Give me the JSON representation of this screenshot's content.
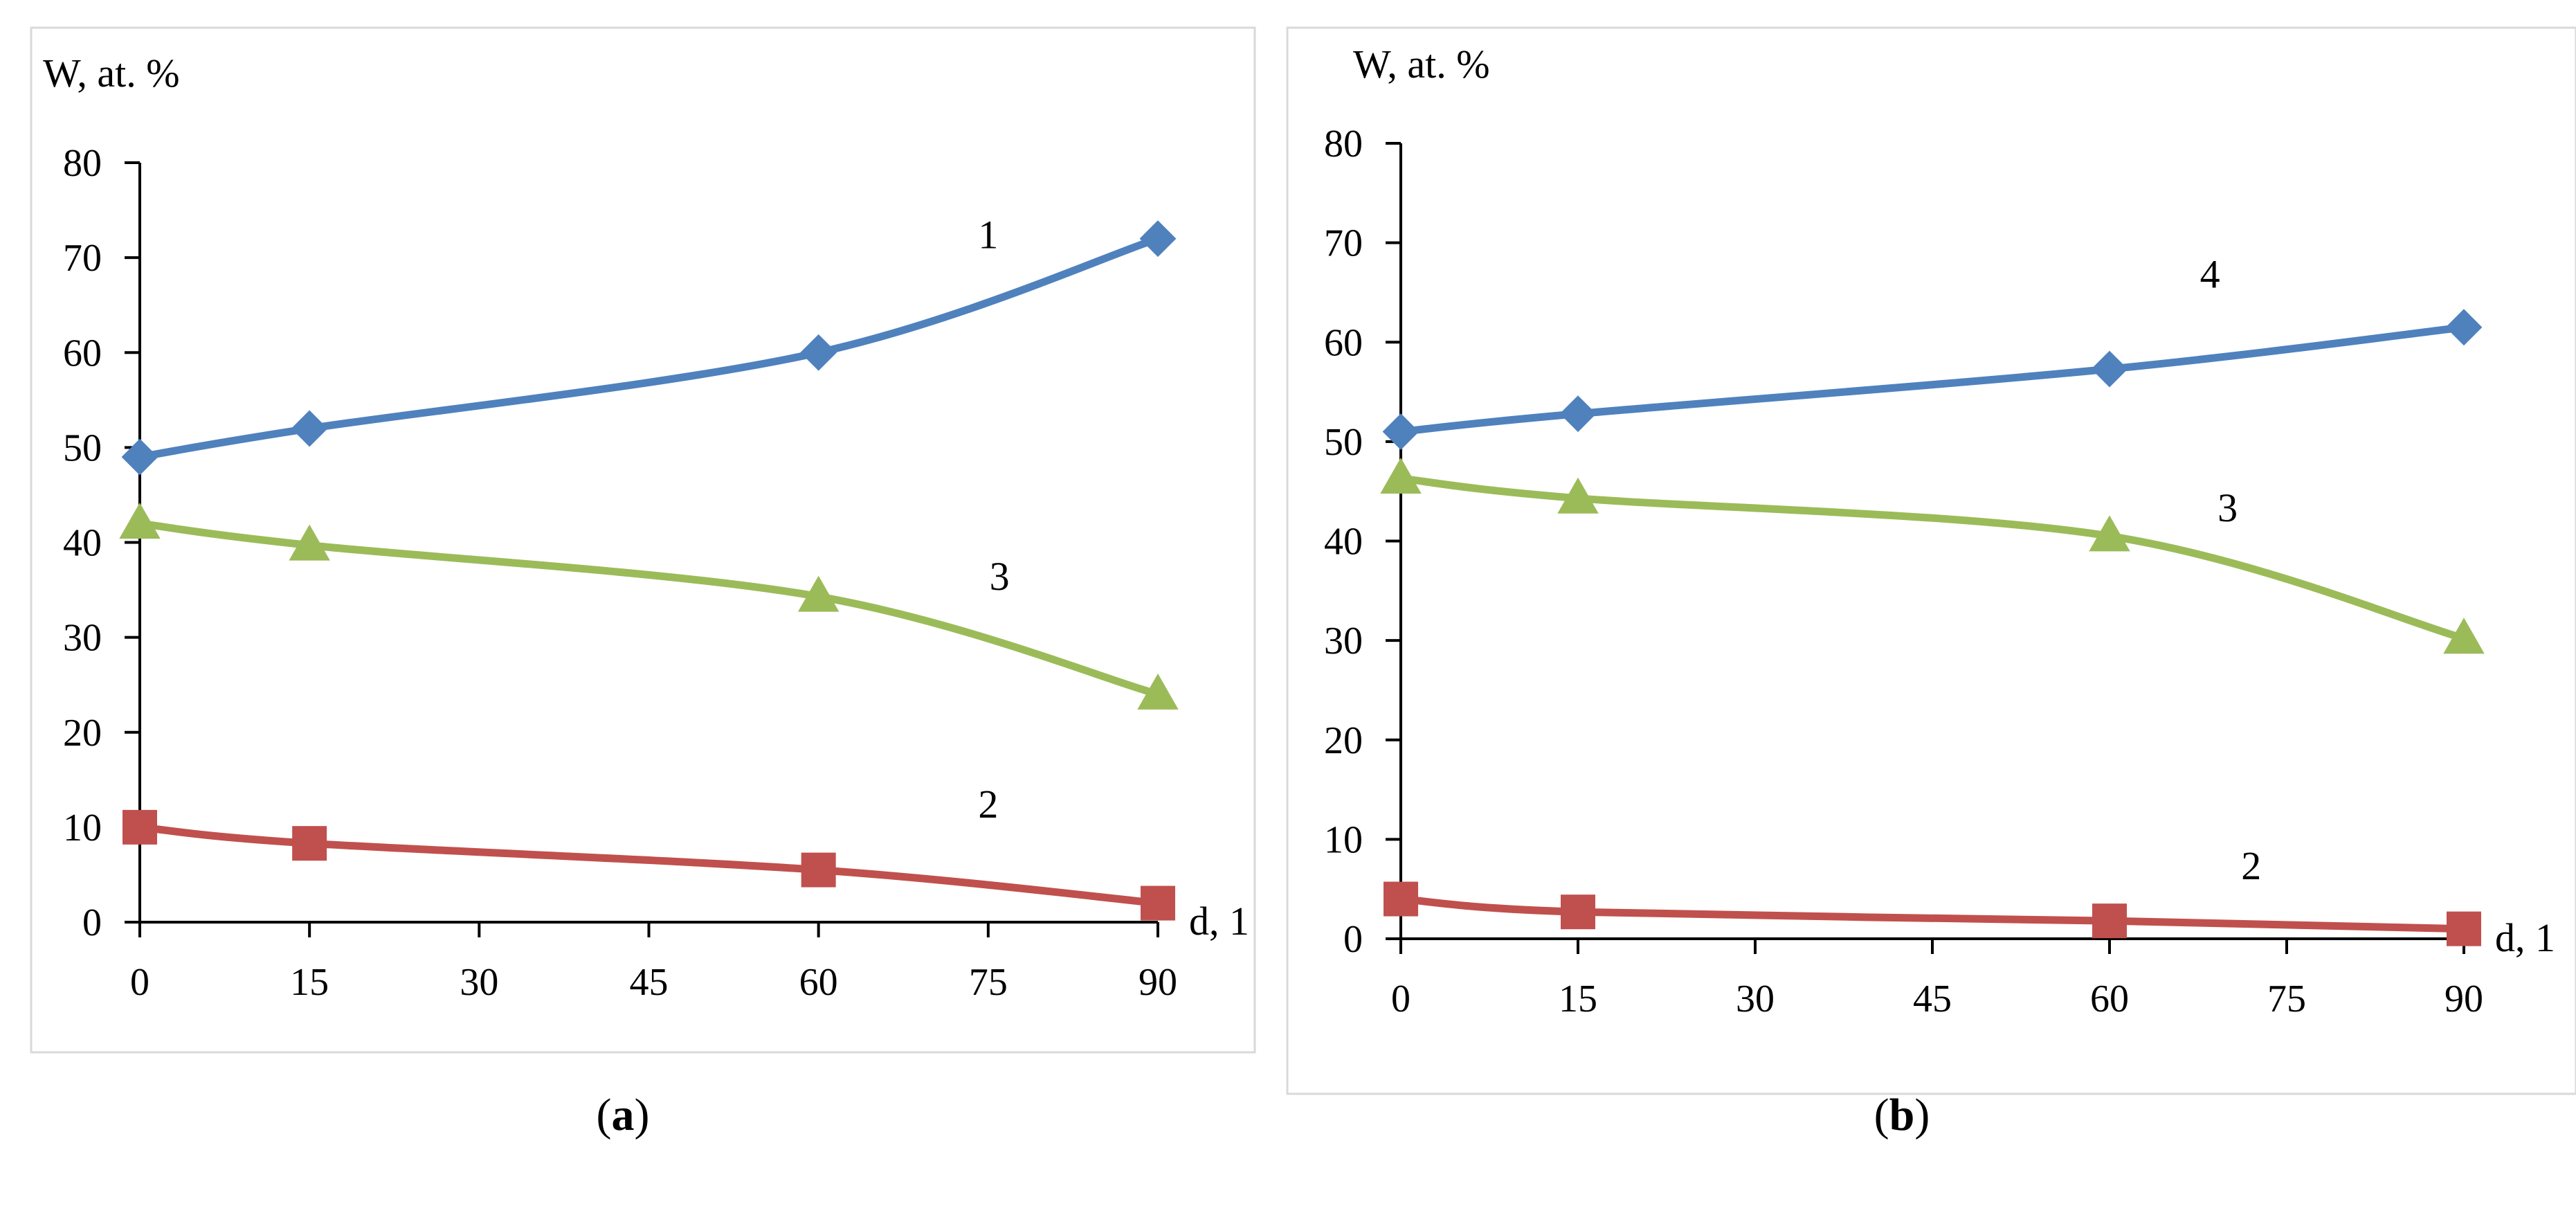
{
  "colors": {
    "series_1": "#4F81BD",
    "series_2": "#C0504D",
    "series_3": "#9BBB59",
    "axis": "#000000",
    "frame": "#D9D9D9"
  },
  "chart_data": [
    {
      "type": "line",
      "panel": "a",
      "caption": "(a)",
      "caption_letter": "a",
      "ylabel": "W, at. %",
      "xlabel": "d, 1",
      "x": [
        0,
        15,
        60,
        90
      ],
      "xticks": [
        "0",
        "15",
        "30",
        "45",
        "60",
        "75",
        "90"
      ],
      "xtick_values": [
        0,
        15,
        30,
        45,
        60,
        75,
        90
      ],
      "yticks": [
        "0",
        "10",
        "20",
        "30",
        "40",
        "50",
        "60",
        "70",
        "80"
      ],
      "ytick_values": [
        0,
        10,
        20,
        30,
        40,
        50,
        60,
        70,
        80
      ],
      "xlim": [
        0,
        90
      ],
      "ylim": [
        0,
        80
      ],
      "grid": false,
      "series": [
        {
          "name": "1",
          "label": "1",
          "color": "#4F81BD",
          "marker": "diamond",
          "values": [
            49,
            52,
            60,
            72
          ],
          "label_x": 75,
          "label_y": 71
        },
        {
          "name": "2",
          "label": "2",
          "color": "#C0504D",
          "marker": "square",
          "values": [
            10,
            8.3,
            5.5,
            2
          ],
          "label_x": 75,
          "label_y": 11
        },
        {
          "name": "3",
          "label": "3",
          "color": "#9BBB59",
          "marker": "triangle",
          "values": [
            42,
            39.7,
            34.3,
            24
          ],
          "label_x": 76,
          "label_y": 35
        }
      ]
    },
    {
      "type": "line",
      "panel": "b",
      "caption": "(b)",
      "caption_letter": "b",
      "ylabel": "W, at. %",
      "xlabel": "d, 1",
      "x": [
        0,
        15,
        60,
        90
      ],
      "xticks": [
        "0",
        "15",
        "30",
        "45",
        "60",
        "75",
        "90"
      ],
      "xtick_values": [
        0,
        15,
        30,
        45,
        60,
        75,
        90
      ],
      "yticks": [
        "0",
        "10",
        "20",
        "30",
        "40",
        "50",
        "60",
        "70",
        "80"
      ],
      "ytick_values": [
        0,
        10,
        20,
        30,
        40,
        50,
        60,
        70,
        80
      ],
      "xlim": [
        0,
        90
      ],
      "ylim": [
        0,
        80
      ],
      "grid": false,
      "series": [
        {
          "name": "4",
          "label": "4",
          "color": "#4F81BD",
          "marker": "diamond",
          "values": [
            51,
            52.8,
            57.3,
            61.5
          ],
          "label_x": 68.5,
          "label_y": 65.5
        },
        {
          "name": "2",
          "label": "2",
          "color": "#C0504D",
          "marker": "square",
          "values": [
            4,
            2.7,
            1.8,
            1
          ],
          "label_x": 72,
          "label_y": 6
        },
        {
          "name": "3",
          "label": "3",
          "color": "#9BBB59",
          "marker": "triangle",
          "values": [
            46.3,
            44.3,
            40.5,
            30.2
          ],
          "label_x": 70,
          "label_y": 42
        }
      ]
    }
  ]
}
